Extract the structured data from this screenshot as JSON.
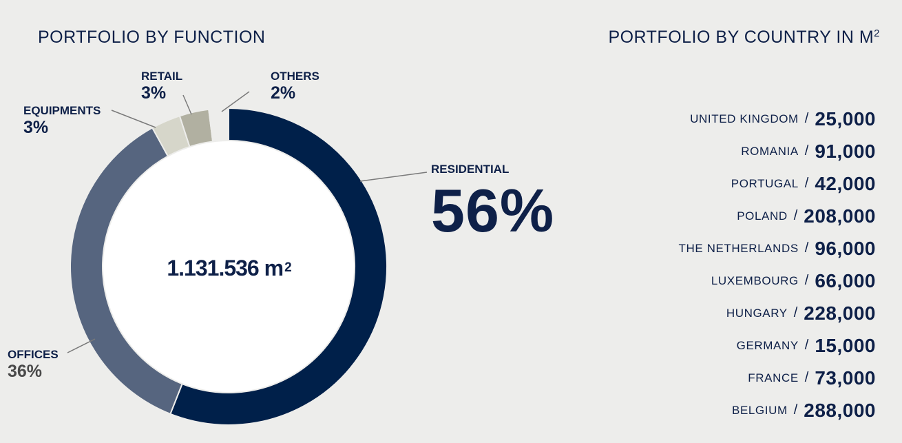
{
  "left_title": "PORTFOLIO BY FUNCTION",
  "right_title": {
    "text": "PORTFOLIO BY COUNTRY IN M",
    "sup": "2"
  },
  "total": {
    "text": "1.131.536 m",
    "sup": "2"
  },
  "chart_data": [
    {
      "type": "pie",
      "donut": true,
      "title": "PORTFOLIO BY FUNCTION",
      "center_label": "1.131.536 m²",
      "slices": [
        {
          "label": "RESIDENTIAL",
          "value": 56,
          "display": "56%",
          "color": "#00204a"
        },
        {
          "label": "OFFICES",
          "value": 36,
          "display": "36%",
          "color": "#56657f"
        },
        {
          "label": "EQUIPMENTS",
          "value": 3,
          "display": "3%",
          "color": "#d6d6ca"
        },
        {
          "label": "RETAIL",
          "value": 3,
          "display": "3%",
          "color": "#b1b0a1"
        },
        {
          "label": "OTHERS",
          "value": 2,
          "display": "2%",
          "color": "#ededeb"
        }
      ]
    },
    {
      "type": "table",
      "title": "PORTFOLIO BY COUNTRY IN M²",
      "rows": [
        {
          "country": "UNITED KINGDOM",
          "value": "25,000",
          "sep": "/"
        },
        {
          "country": "ROMANIA",
          "value": "91,000",
          "sep": "/"
        },
        {
          "country": "PORTUGAL",
          "value": "42,000",
          "sep": "/"
        },
        {
          "country": "POLAND",
          "value": "208,000",
          "sep": "/"
        },
        {
          "country": "THE NETHERLANDS",
          "value": "96,000",
          "sep": "/"
        },
        {
          "country": "LUXEMBOURG",
          "value": "66,000",
          "sep": "/"
        },
        {
          "country": "HUNGARY",
          "value": "228,000",
          "sep": "/"
        },
        {
          "country": "GERMANY",
          "value": "15,000",
          "sep": "/"
        },
        {
          "country": "FRANCE",
          "value": "73,000",
          "sep": "/"
        },
        {
          "country": "BELGIUM",
          "value": "288,000",
          "sep": "/"
        }
      ]
    }
  ]
}
